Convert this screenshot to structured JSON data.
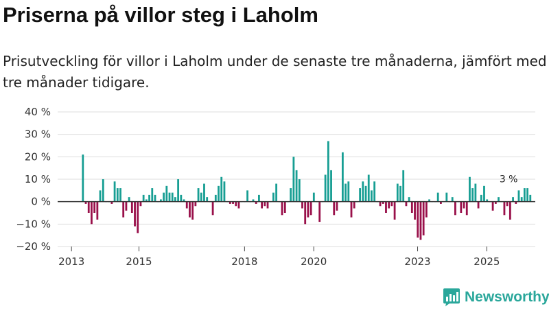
{
  "header": {
    "title": "Priserna på villor steg i Laholm",
    "subtitle": "Prisutveckling för villor i Laholm under de senaste tre månaderna, jämfört med tre månader tidigare."
  },
  "brand": {
    "name": "Newsworthy",
    "logo_icon": "bar-chart-speech-bubble-icon"
  },
  "colors": {
    "positive": "#179e93",
    "negative": "#99104a",
    "grid": "#dddddd",
    "zero_line": "#333333",
    "brand": "#2aa79b"
  },
  "chart_data": {
    "type": "bar",
    "title": "Priserna på villor steg i Laholm",
    "xlabel": "",
    "ylabel": "",
    "ylim": [
      -20,
      40
    ],
    "yticks": [
      -20,
      -10,
      0,
      10,
      20,
      30,
      40
    ],
    "ytick_labels": [
      "−20 %",
      "−10 %",
      "0 %",
      "10 %",
      "20 %",
      "30 %",
      "40 %"
    ],
    "xtick_labels": [
      "2013",
      "2015",
      "2018",
      "2020",
      "2023",
      "2025"
    ],
    "xtick_positions": [
      2013,
      2014.95,
      2018.0,
      2020.0,
      2023.0,
      2025.0
    ],
    "xlim": [
      2012.6,
      2026.4
    ],
    "grid": true,
    "annotation": {
      "label": "3 %",
      "x": 2025.63,
      "value": 3
    },
    "x_start": 2013.33,
    "x_step": 0.0834,
    "series": [
      {
        "name": "Prisutveckling, tre månader",
        "values": [
          21,
          -1,
          -5,
          -10,
          -5,
          -8,
          5,
          10,
          0,
          0,
          -1,
          9,
          6,
          6,
          -7,
          -4,
          2,
          -5,
          -11,
          -14,
          -2,
          3,
          1,
          3,
          6,
          3,
          0,
          1,
          4,
          7,
          4,
          4,
          2,
          10,
          3,
          1,
          -3,
          -7,
          -8,
          -2,
          6,
          4,
          8,
          2,
          0,
          -6,
          3,
          7,
          11,
          9,
          0,
          -1,
          -1,
          -2,
          -3,
          0,
          0,
          5,
          0,
          1,
          -1,
          3,
          -3,
          -2,
          -3,
          0,
          4,
          8,
          0,
          -6,
          -5,
          0,
          6,
          20,
          14,
          10,
          -3,
          -10,
          -7,
          -6,
          4,
          0,
          -9,
          0,
          12,
          27,
          14,
          -6,
          -4,
          0,
          22,
          8,
          9,
          -7,
          -3,
          0,
          6,
          9,
          7,
          12,
          5,
          9,
          0,
          -2,
          -1,
          -5,
          -3,
          -2,
          -8,
          8,
          7,
          14,
          -2,
          2,
          -5,
          -8,
          -16,
          -17,
          -15,
          -7,
          1,
          0,
          0,
          4,
          -1,
          0,
          4,
          0,
          2,
          -6,
          0,
          -5,
          -3,
          -6,
          11,
          6,
          8,
          -3,
          3,
          7,
          1,
          0,
          -4,
          -1,
          2,
          0,
          -6,
          -2,
          -8,
          2,
          -1,
          5,
          2,
          6,
          6,
          3
        ]
      }
    ]
  }
}
